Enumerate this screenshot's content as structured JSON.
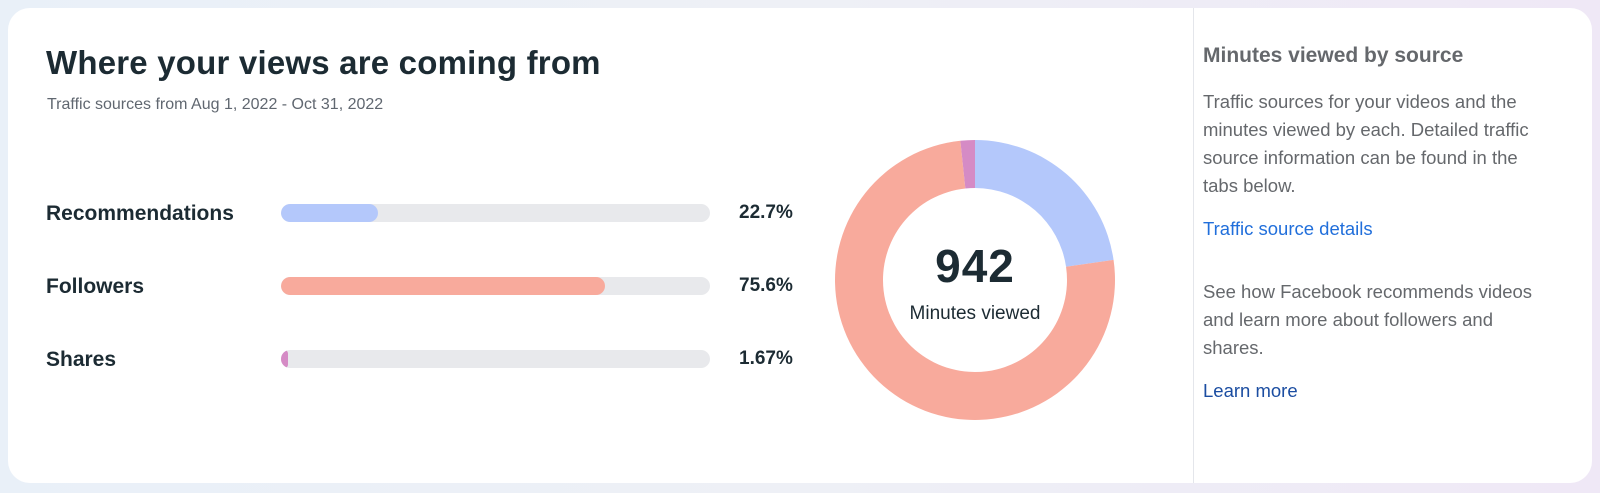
{
  "header": {
    "title": "Where your views are coming from",
    "subtitle": "Traffic sources from Aug 1, 2022 - Oct 31, 2022"
  },
  "sources": [
    {
      "label": "Recommendations",
      "percent_text": "22.7%",
      "value": 22.7,
      "color": "#b4c8fb"
    },
    {
      "label": "Followers",
      "percent_text": "75.6%",
      "value": 75.6,
      "color": "#f8aa9c"
    },
    {
      "label": "Shares",
      "percent_text": "1.67%",
      "value": 1.67,
      "color": "#d58bc5"
    }
  ],
  "donut": {
    "value": "942",
    "caption": "Minutes viewed"
  },
  "sidebar": {
    "title": "Minutes viewed by source",
    "description": "Traffic sources for your videos and the minutes viewed by each. Detailed traffic source information can be found in the tabs below.",
    "details_link": "Traffic source details",
    "recommend_text": "See how Facebook recommends videos and learn more about followers and shares.",
    "learn_more_link": "Learn more"
  },
  "colors": {
    "track": "#e8e9ec",
    "link": "#216fdb",
    "link_dark": "#1b4da1"
  }
}
